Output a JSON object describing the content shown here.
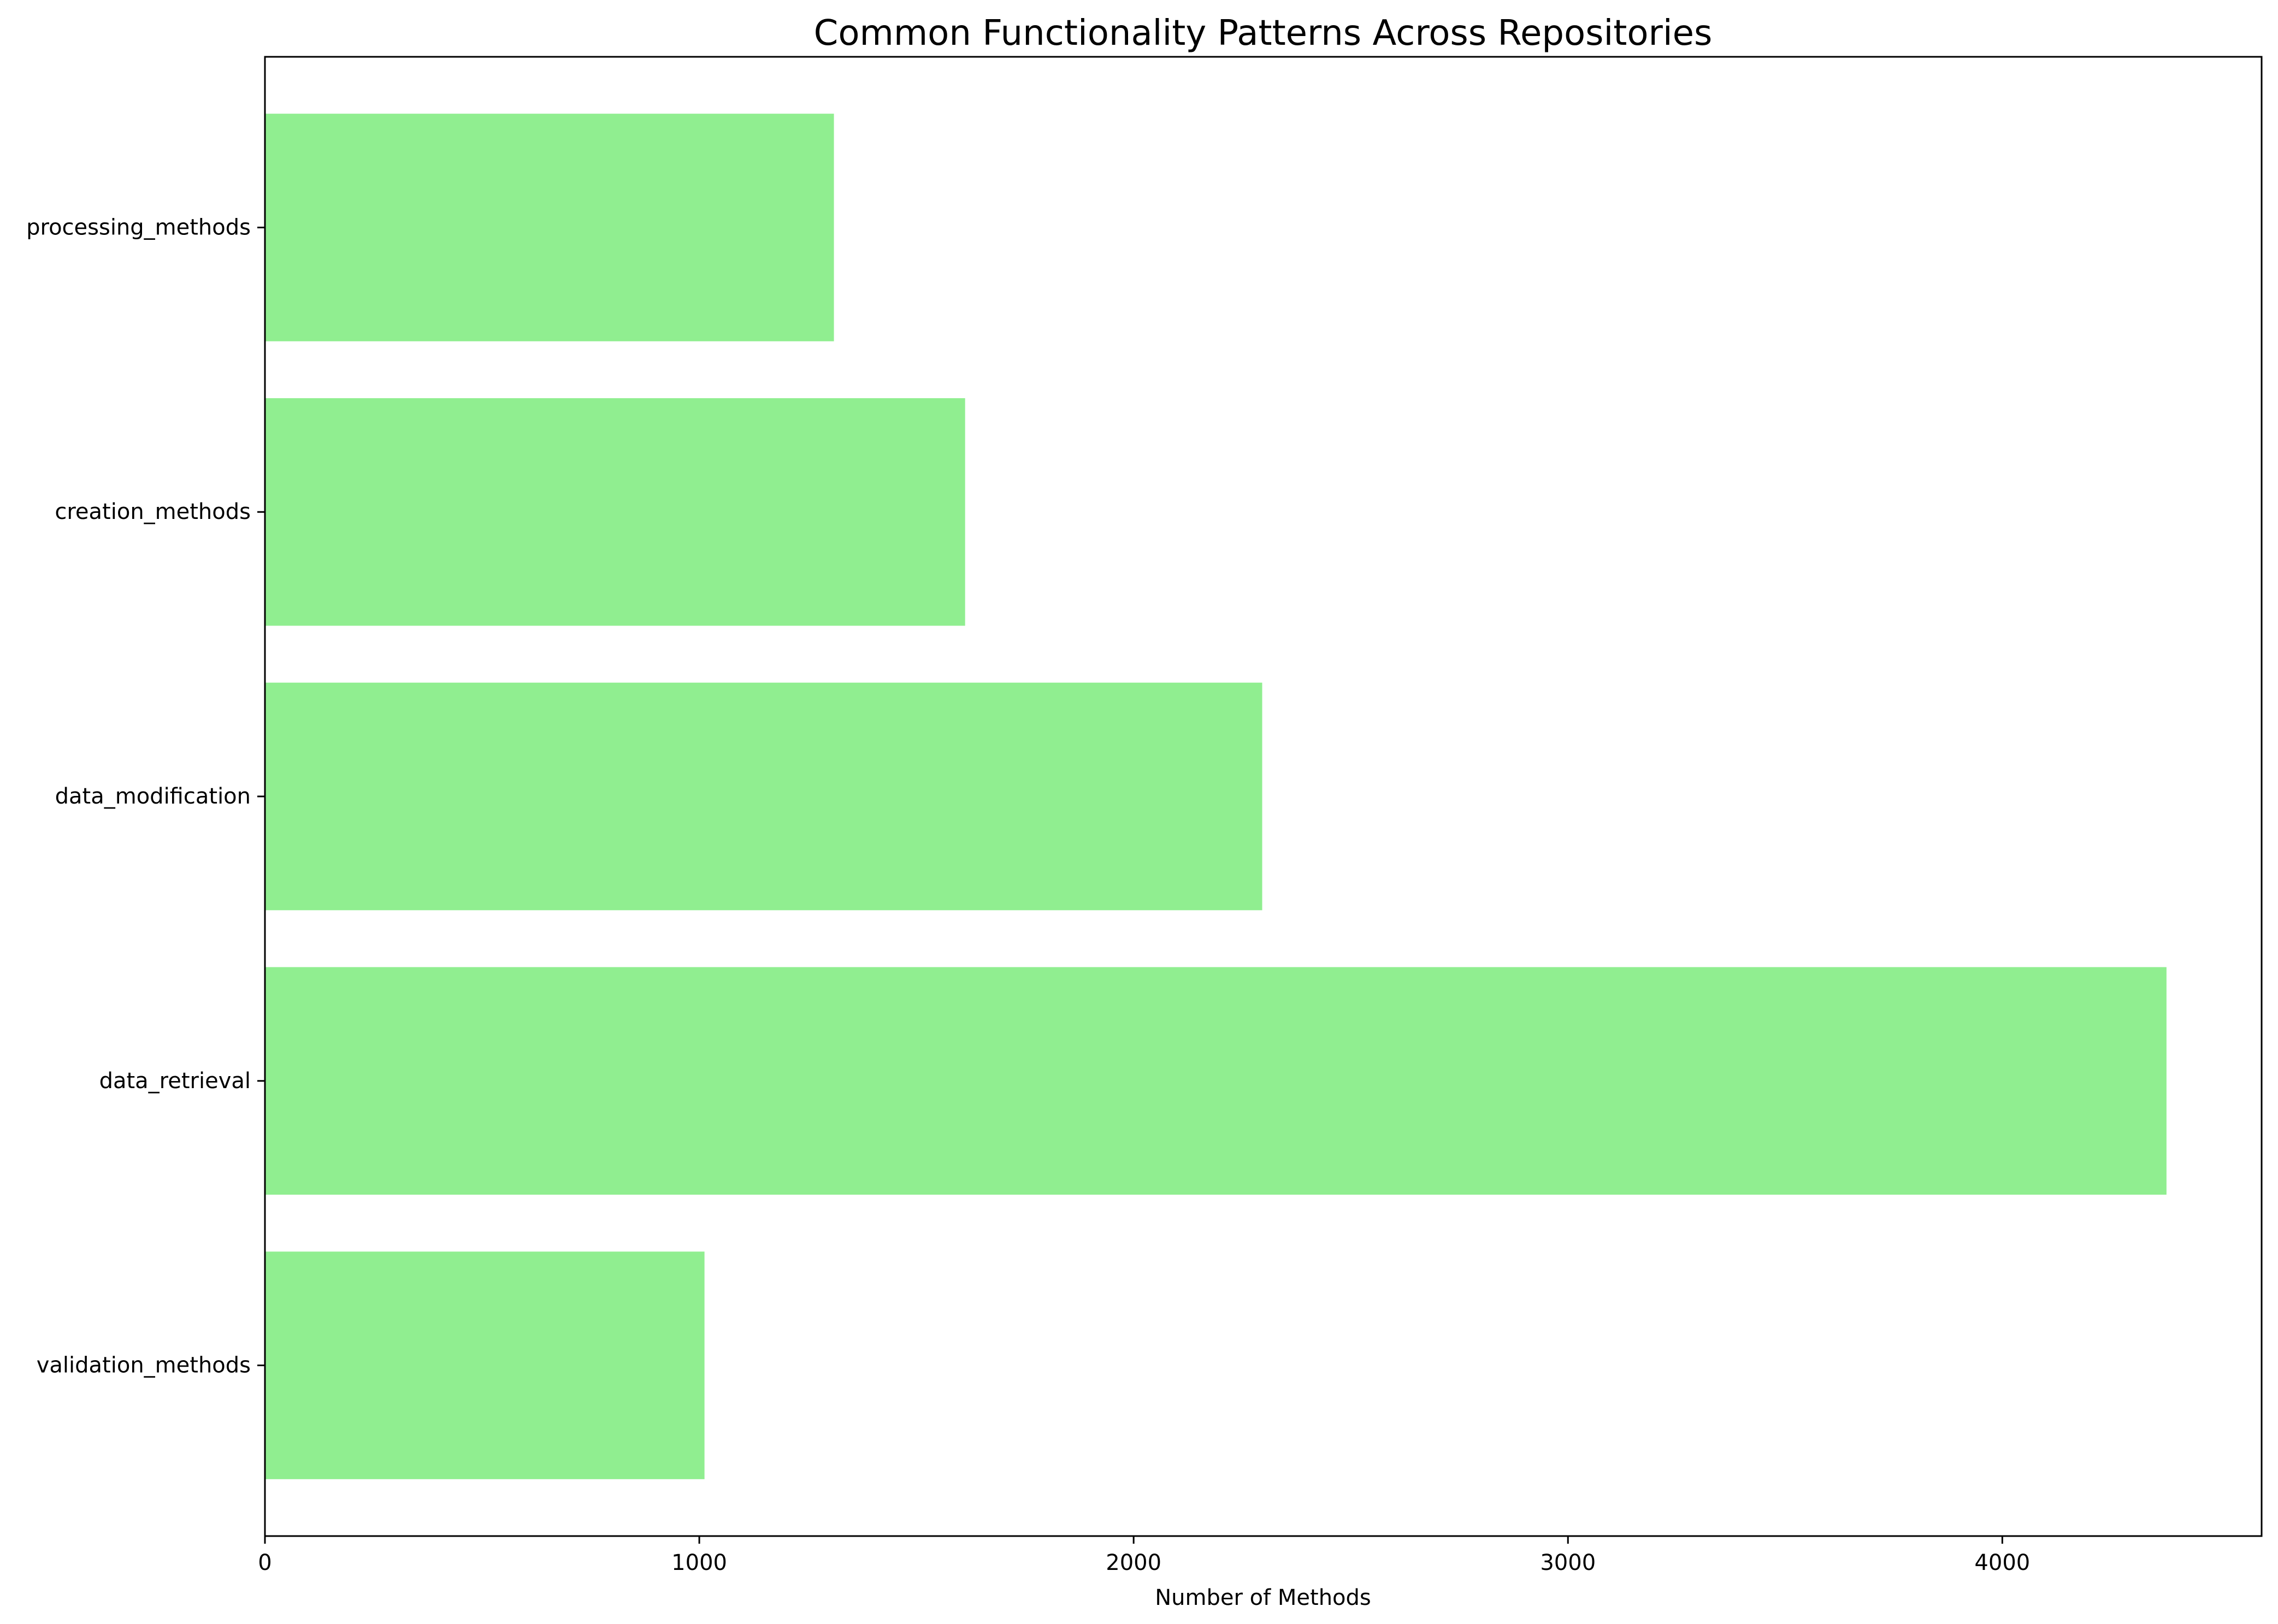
{
  "chart_data": {
    "type": "bar",
    "orientation": "horizontal",
    "title": "Common Functionality Patterns Across Repositories",
    "xlabel": "Number of Methods",
    "ylabel": "",
    "categories": [
      "validation_methods",
      "data_retrieval",
      "data_modification",
      "creation_methods",
      "processing_methods"
    ],
    "values": [
      1012,
      4378,
      2296,
      1612,
      1310
    ],
    "xlim": [
      0,
      4597
    ],
    "xticks": [
      0,
      1000,
      2000,
      3000,
      4000
    ],
    "grid": false,
    "bar_color": "#90ee90"
  }
}
